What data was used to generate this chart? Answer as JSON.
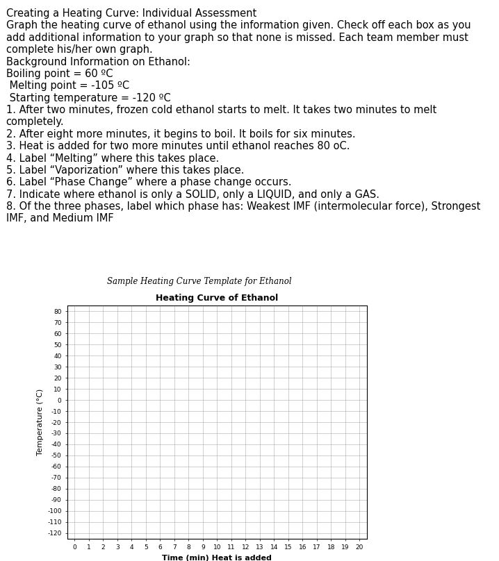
{
  "title_text": "Creating a Heating Curve: Individual Assessment",
  "line1": "Graph the heating curve of ethanol using the information given. Check off each box as you",
  "line2": "add additional information to your graph so that none is missed. Each team member must",
  "line3": "complete his/her own graph.",
  "line4": "Background Information on Ethanol:",
  "line5": "Boiling point = 60 ºC",
  "line6": " Melting point = -105 ºC",
  "line7": " Starting temperature = -120 ºC",
  "line8": "1. After two minutes, frozen cold ethanol starts to melt. It takes two minutes to melt",
  "line9": "completely.",
  "line10": "2. After eight more minutes, it begins to boil. It boils for six minutes.",
  "line11": "3. Heat is added for two more minutes until ethanol reaches 80 oC.",
  "line12": "4. Label “Melting” where this takes place.",
  "line13": "5. Label “Vaporization” where this takes place.",
  "line14": "6. Label “Phase Change” where a phase change occurs.",
  "line15": "7. Indicate where ethanol is only a SOLID, only a LIQUID, and only a GAS.",
  "line16": "8. Of the three phases, label which phase has: Weakest IMF (intermolecular force), Strongest",
  "line17": "IMF, and Medium IMF",
  "section_label": "Sample Heating Curve Template for Ethanol",
  "chart_title": "Heating Curve of Ethanol",
  "xlabel": "Time (min) Heat is added",
  "ylabel": "Temperature (°C)",
  "x_ticks": [
    0,
    1,
    2,
    3,
    4,
    5,
    6,
    7,
    8,
    9,
    10,
    11,
    12,
    13,
    14,
    15,
    16,
    17,
    18,
    19,
    20
  ],
  "y_ticks": [
    80,
    70,
    60,
    50,
    40,
    30,
    20,
    10,
    0,
    -10,
    -20,
    -30,
    -40,
    -50,
    -60,
    -70,
    -80,
    -90,
    -100,
    -110,
    -120
  ],
  "ylim": [
    -125,
    85
  ],
  "xlim": [
    -0.5,
    20.5
  ],
  "background_color": "#ffffff",
  "grid_color": "#888888",
  "text_color": "#000000",
  "body_fontsize": 10.5,
  "chart_title_fontsize": 9,
  "section_label_fontsize": 8.5,
  "tick_fontsize": 6.5,
  "axis_label_fontsize": 8
}
